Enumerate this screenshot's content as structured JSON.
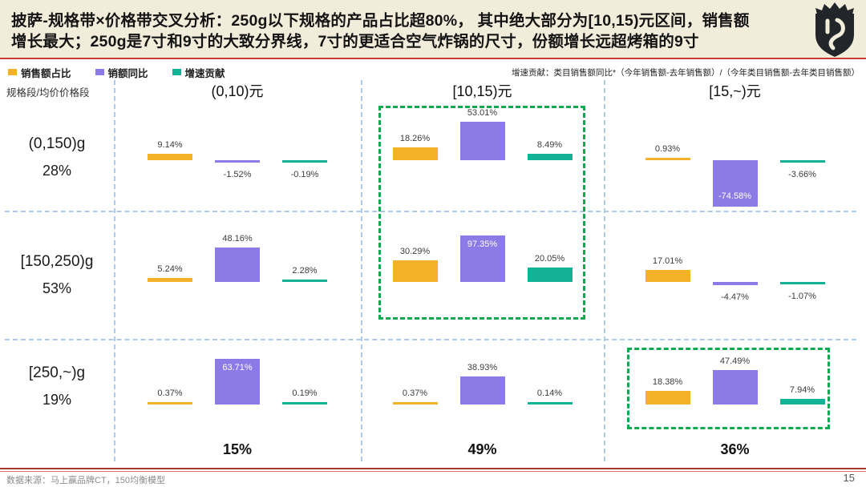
{
  "slide": {
    "title_line1": "披萨-规格带×价格带交叉分析：250g以下规格的产品占比超80%， 其中绝大部分为[10,15)元区间，销售额",
    "title_line2": "增长最大；250g是7寸和9寸的大致分界线，7寸的更适合空气炸锅的尺寸，份额增长远超烤箱的9寸",
    "footer_source": "数据来源：马上赢品牌CT，150均衡模型",
    "page_number": "15"
  },
  "legend": {
    "items": [
      {
        "label": "销售额占比",
        "color": "#F3B229"
      },
      {
        "label": "销额同比",
        "color": "#8C7BE6"
      },
      {
        "label": "增速贡献",
        "color": "#13B296"
      }
    ],
    "note": "增速贡献：类目销售额同比*（今年销售额-去年销售额）/（今年类目销售额-去年类目销售额）"
  },
  "chart_data": {
    "type": "bar",
    "axis_corner_label": "规格段/均价价格段",
    "unit": "percent",
    "columns": [
      {
        "label": "(0,10)元",
        "total": "15%"
      },
      {
        "label": "[10,15)元",
        "total": "49%"
      },
      {
        "label": "[15,~)元",
        "total": "36%"
      }
    ],
    "rows": [
      {
        "label": "(0,150)g",
        "share": "28%"
      },
      {
        "label": "[150,250)g",
        "share": "53%"
      },
      {
        "label": "[250,~)g",
        "share": "19%"
      }
    ],
    "series": [
      {
        "name": "销售额占比",
        "key": "sales-share",
        "color": "#F3B229"
      },
      {
        "name": "销额同比",
        "key": "sales-yoy",
        "color": "#8C7BE6"
      },
      {
        "name": "增速贡献",
        "key": "growth-contribution",
        "color": "#13B296"
      }
    ],
    "cells": [
      [
        {
          "values": [
            9.14,
            -1.52,
            -0.19
          ],
          "labels": [
            "9.14%",
            "-1.52%",
            "-0.19%"
          ],
          "label_pos": [
            "above",
            "below",
            "below"
          ]
        },
        {
          "values": [
            18.26,
            53.01,
            8.49
          ],
          "labels": [
            "18.26%",
            "53.01%",
            "8.49%"
          ],
          "label_pos": [
            "above",
            "above",
            "above"
          ]
        },
        {
          "values": [
            0.93,
            -74.58,
            -3.66
          ],
          "labels": [
            "0.93%",
            "-74.58%",
            "-3.66%"
          ],
          "label_pos": [
            "above",
            "inside",
            "below"
          ]
        }
      ],
      [
        {
          "values": [
            5.24,
            48.16,
            2.28
          ],
          "labels": [
            "5.24%",
            "48.16%",
            "2.28%"
          ],
          "label_pos": [
            "above",
            "above",
            "above"
          ]
        },
        {
          "values": [
            30.29,
            97.35,
            20.05
          ],
          "labels": [
            "30.29%",
            "97.35%",
            "20.05%"
          ],
          "label_pos": [
            "above",
            "inside",
            "above"
          ]
        },
        {
          "values": [
            17.01,
            -4.47,
            -1.07
          ],
          "labels": [
            "17.01%",
            "-4.47%",
            "-1.07%"
          ],
          "label_pos": [
            "above",
            "below",
            "below"
          ]
        }
      ],
      [
        {
          "values": [
            0.37,
            63.71,
            0.19
          ],
          "labels": [
            "0.37%",
            "63.71%",
            "0.19%"
          ],
          "label_pos": [
            "above",
            "inside",
            "above"
          ]
        },
        {
          "values": [
            0.37,
            38.93,
            0.14
          ],
          "labels": [
            "0.37%",
            "38.93%",
            "0.14%"
          ],
          "label_pos": [
            "above",
            "above",
            "above"
          ]
        },
        {
          "values": [
            18.38,
            47.49,
            7.94
          ],
          "labels": [
            "18.38%",
            "47.49%",
            "7.94%"
          ],
          "label_pos": [
            "above",
            "above",
            "above"
          ]
        }
      ]
    ],
    "highlights": [
      {
        "description": "[10,15)元列 × (0,150)g与[150,250)g 行重点框",
        "color": "#0FA94F"
      },
      {
        "description": "[15,~)元列 × [250,~)g 行重点框",
        "color": "#0FA94F"
      }
    ]
  }
}
